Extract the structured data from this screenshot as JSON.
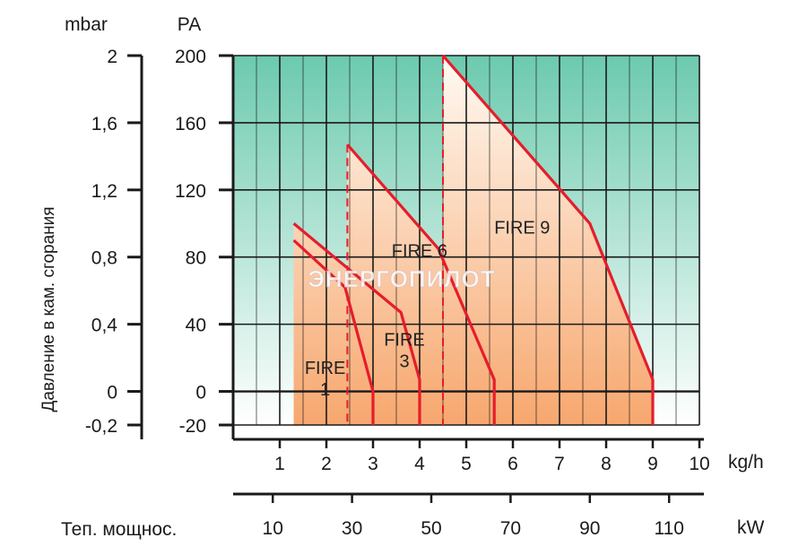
{
  "chart_data": {
    "type": "area",
    "left_unit": "mbar",
    "right_unit": "PA",
    "ylabel": "Давление в кам. сгорания",
    "mbar_ticks": [
      "2",
      "1,6",
      "1,2",
      "0,8",
      "0,4",
      "0",
      "-0,2"
    ],
    "pa_ticks": [
      "200",
      "160",
      "120",
      "80",
      "40",
      "0",
      "-20"
    ],
    "ylim_pa": [
      -20,
      200
    ],
    "xlim_kgh": [
      0,
      10
    ],
    "x_unit": "kg/h",
    "x_ticks": [
      "1",
      "2",
      "3",
      "4",
      "5",
      "6",
      "7",
      "8",
      "9",
      "10"
    ],
    "kw_label": "Теп. мощнос.",
    "kw_unit": "kW",
    "kw_ticks": [
      {
        "label": "10",
        "kgh": 0.85
      },
      {
        "label": "30",
        "kgh": 2.55
      },
      {
        "label": "50",
        "kgh": 4.25
      },
      {
        "label": "70",
        "kgh": 5.95
      },
      {
        "label": "90",
        "kgh": 7.65
      },
      {
        "label": "110",
        "kgh": 9.35
      }
    ],
    "grid": true,
    "series": [
      {
        "name": "FIRE 1",
        "label_lines": [
          "FIRE",
          "1"
        ],
        "label_at": {
          "x": 1.55,
          "y": 5
        },
        "points": [
          [
            1.3,
            90
          ],
          [
            2.4,
            62
          ],
          [
            3.0,
            0
          ],
          [
            3.0,
            -20
          ]
        ]
      },
      {
        "name": "FIRE 3",
        "label_lines": [
          "FIRE",
          "3"
        ],
        "label_at": {
          "x": 3.25,
          "y": 22
        },
        "points": [
          [
            1.3,
            100
          ],
          [
            3.6,
            47
          ],
          [
            4.0,
            7
          ],
          [
            4.0,
            -20
          ]
        ]
      },
      {
        "name": "FIRE 6",
        "label_lines": [
          "FIRE 6"
        ],
        "label_at": {
          "x": 3.4,
          "y": 80
        },
        "points": [
          [
            2.45,
            147
          ],
          [
            4.4,
            85
          ],
          [
            5.6,
            7
          ],
          [
            5.6,
            -20
          ]
        ]
      },
      {
        "name": "FIRE 9",
        "label_lines": [
          "FIRE 9"
        ],
        "label_at": {
          "x": 5.6,
          "y": 94
        },
        "points": [
          [
            4.5,
            200
          ],
          [
            7.65,
            100
          ],
          [
            9.0,
            7
          ],
          [
            9.0,
            -20
          ]
        ]
      }
    ],
    "dashed_x": [
      2.45,
      4.5
    ],
    "colors": {
      "grid_top": "#6ccaae",
      "grid_bottom": "#ffffff",
      "fill_top": "#fffaf3",
      "fill_bottom": "#f7a76e",
      "line": "#e51d2b",
      "axis": "#1a1a1a"
    }
  },
  "watermark": "ЭНЕРГОПИЛОТ"
}
